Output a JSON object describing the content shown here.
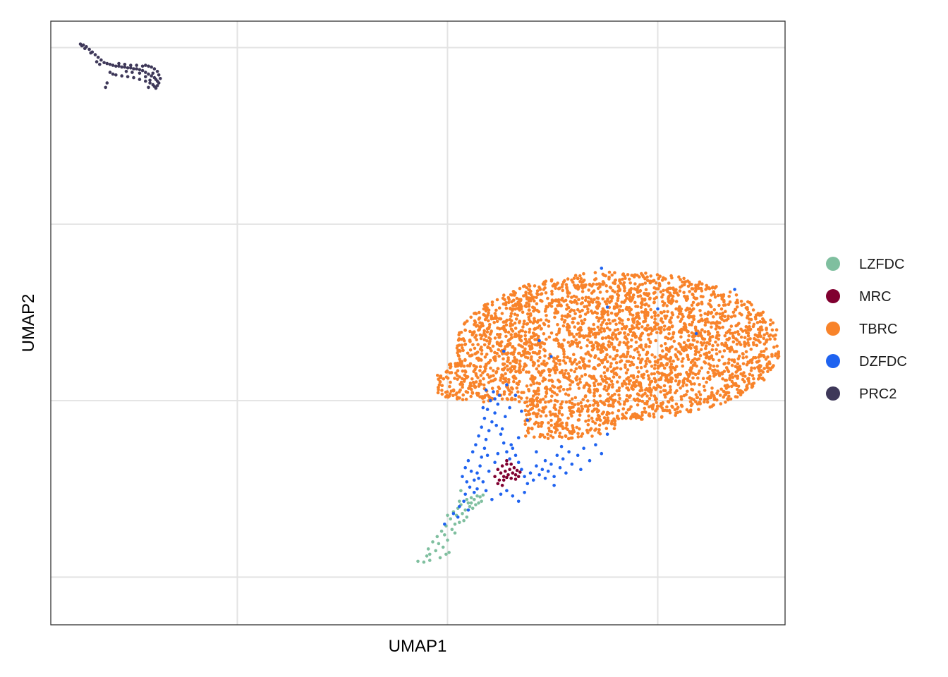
{
  "chart_data": {
    "type": "scatter",
    "title": "",
    "xlabel": "UMAP1",
    "ylabel": "UMAP2",
    "xlim": [
      -8.8,
      16
    ],
    "ylim": [
      -7.2,
      27
    ],
    "x_gridlines": [
      -2.5,
      4.6,
      11.7
    ],
    "y_gridlines": [
      -4.5,
      5.5,
      15.5,
      25.5
    ],
    "tick_labels_shown": false,
    "grid": true,
    "legend_position": "right",
    "series": [
      {
        "name": "LZFDC",
        "color": "#7FBF9F",
        "points": [
          [
            3.6,
            -3.6
          ],
          [
            3.8,
            -3.65
          ],
          [
            3.9,
            -3.3
          ],
          [
            3.95,
            -2.9
          ],
          [
            4.0,
            -3.2
          ],
          [
            4.1,
            -2.5
          ],
          [
            4.2,
            -3.0
          ],
          [
            4.25,
            -2.2
          ],
          [
            4.3,
            -2.6
          ],
          [
            4.35,
            -3.4
          ],
          [
            4.4,
            -1.9
          ],
          [
            4.45,
            -2.8
          ],
          [
            4.5,
            -2.1
          ],
          [
            4.55,
            -1.6
          ],
          [
            4.6,
            -2.4
          ],
          [
            4.65,
            -3.1
          ],
          [
            4.7,
            -1.2
          ],
          [
            4.75,
            -1.8
          ],
          [
            4.8,
            -0.8
          ],
          [
            4.85,
            -2.0
          ],
          [
            4.9,
            -1.0
          ],
          [
            4.95,
            -0.6
          ],
          [
            5.0,
            -1.4
          ],
          [
            5.05,
            -0.4
          ],
          [
            5.1,
            -0.9
          ],
          [
            5.15,
            -0.2
          ],
          [
            5.2,
            -0.7
          ],
          [
            5.25,
            -1.1
          ],
          [
            5.3,
            -0.3
          ],
          [
            5.35,
            -0.5
          ],
          [
            5.4,
            0.0
          ],
          [
            5.45,
            -0.6
          ],
          [
            5.5,
            -0.1
          ],
          [
            5.55,
            -0.4
          ],
          [
            5.6,
            0.1
          ],
          [
            5.65,
            -0.3
          ],
          [
            5.7,
            0.05
          ],
          [
            5.75,
            -0.2
          ],
          [
            5.8,
            0.15
          ],
          [
            4.0,
            -3.55
          ],
          [
            4.55,
            -3.2
          ],
          [
            4.6,
            -1.0
          ],
          [
            4.85,
            -1.5
          ],
          [
            5.0,
            -0.2
          ],
          [
            5.15,
            -1.3
          ],
          [
            5.25,
            -0.1
          ],
          [
            5.4,
            -0.3
          ],
          [
            5.05,
            0.4
          ]
        ]
      },
      {
        "name": "MRC",
        "color": "#800030",
        "points": [
          [
            6.2,
            1.2
          ],
          [
            6.3,
            1.6
          ],
          [
            6.35,
            1.0
          ],
          [
            6.4,
            1.4
          ],
          [
            6.45,
            1.8
          ],
          [
            6.5,
            1.2
          ],
          [
            6.55,
            1.5
          ],
          [
            6.6,
            1.9
          ],
          [
            6.65,
            1.3
          ],
          [
            6.7,
            1.6
          ],
          [
            6.75,
            1.1
          ],
          [
            6.8,
            1.4
          ],
          [
            6.85,
            1.7
          ],
          [
            6.9,
            1.3
          ],
          [
            6.95,
            1.55
          ],
          [
            7.0,
            1.2
          ],
          [
            7.05,
            1.45
          ],
          [
            6.5,
            1.0
          ],
          [
            6.6,
            2.1
          ],
          [
            6.75,
            1.9
          ],
          [
            6.45,
            0.7
          ],
          [
            6.3,
            0.8
          ],
          [
            6.9,
            1.05
          ],
          [
            6.6,
            1.15
          ]
        ]
      },
      {
        "name": "TBRC",
        "color": "#F8832A",
        "generated": true,
        "approx_count": 3000
      },
      {
        "name": "DZFDC",
        "color": "#1F63F0",
        "points": [
          [
            4.5,
            -1.5
          ],
          [
            4.8,
            -0.9
          ],
          [
            5.0,
            -0.5
          ],
          [
            5.2,
            0.2
          ],
          [
            5.35,
            0.6
          ],
          [
            5.5,
            1.0
          ],
          [
            5.6,
            1.4
          ],
          [
            5.7,
            1.8
          ],
          [
            5.75,
            2.3
          ],
          [
            5.85,
            2.8
          ],
          [
            5.9,
            3.3
          ],
          [
            6.0,
            3.8
          ],
          [
            6.1,
            4.3
          ],
          [
            6.2,
            4.8
          ],
          [
            6.3,
            5.3
          ],
          [
            6.35,
            5.8
          ],
          [
            5.1,
            1.2
          ],
          [
            5.2,
            1.7
          ],
          [
            5.3,
            2.1
          ],
          [
            5.45,
            2.6
          ],
          [
            5.55,
            3.0
          ],
          [
            5.65,
            3.5
          ],
          [
            5.75,
            4.0
          ],
          [
            5.85,
            4.5
          ],
          [
            5.95,
            5.0
          ],
          [
            6.05,
            5.5
          ],
          [
            6.15,
            6.0
          ],
          [
            6.25,
            4.1
          ],
          [
            6.4,
            3.6
          ],
          [
            6.5,
            3.1
          ],
          [
            6.6,
            2.6
          ],
          [
            6.7,
            2.2
          ],
          [
            6.8,
            2.8
          ],
          [
            6.9,
            2.4
          ],
          [
            7.0,
            2.0
          ],
          [
            7.1,
            1.6
          ],
          [
            7.2,
            1.2
          ],
          [
            7.3,
            0.8
          ],
          [
            7.4,
            1.4
          ],
          [
            7.5,
            1.0
          ],
          [
            7.6,
            1.8
          ],
          [
            7.7,
            1.3
          ],
          [
            7.8,
            1.6
          ],
          [
            7.9,
            2.1
          ],
          [
            8.0,
            1.5
          ],
          [
            8.1,
            1.9
          ],
          [
            8.2,
            1.2
          ],
          [
            8.3,
            2.4
          ],
          [
            8.4,
            1.7
          ],
          [
            8.5,
            2.2
          ],
          [
            8.6,
            1.4
          ],
          [
            8.7,
            2.6
          ],
          [
            8.8,
            1.9
          ],
          [
            9.0,
            2.4
          ],
          [
            9.2,
            2.8
          ],
          [
            9.4,
            2.1
          ],
          [
            6.6,
            0.4
          ],
          [
            6.8,
            0.1
          ],
          [
            7.0,
            -0.2
          ],
          [
            7.2,
            0.3
          ],
          [
            6.4,
            0.2
          ],
          [
            6.1,
            -0.1
          ],
          [
            5.9,
            0.4
          ],
          [
            5.8,
            0.9
          ],
          [
            6.0,
            1.5
          ],
          [
            6.2,
            2.0
          ],
          [
            6.3,
            2.5
          ],
          [
            5.4,
            1.5
          ],
          [
            5.25,
            0.9
          ],
          [
            5.6,
            0.5
          ],
          [
            5.95,
            2.4
          ],
          [
            6.45,
            3.9
          ],
          [
            6.55,
            4.6
          ],
          [
            6.7,
            5.1
          ],
          [
            6.2,
            5.6
          ],
          [
            5.9,
            6.1
          ],
          [
            5.8,
            5.1
          ],
          [
            6.6,
            6.4
          ],
          [
            6.9,
            5.8
          ],
          [
            7.1,
            4.9
          ],
          [
            7.3,
            4.4
          ],
          [
            7.0,
            3.4
          ],
          [
            6.75,
            3.0
          ],
          [
            5.65,
            1.1
          ],
          [
            5.5,
            0.3
          ],
          [
            5.3,
            -0.7
          ],
          [
            5.15,
            -0.2
          ],
          [
            4.95,
            -1.1
          ],
          [
            7.6,
            2.6
          ],
          [
            7.9,
            1.1
          ],
          [
            8.2,
            0.7
          ],
          [
            8.45,
            2.9
          ],
          [
            9.6,
            3.0
          ],
          [
            9.8,
            2.5
          ],
          [
            10.0,
            3.6
          ],
          [
            9.1,
            1.6
          ],
          [
            7.7,
            8.9
          ],
          [
            9.8,
            13.0
          ],
          [
            11.7,
            10.7
          ],
          [
            14.3,
            11.8
          ],
          [
            10.0,
            10.8
          ],
          [
            6.5,
            8.3
          ],
          [
            8.1,
            8.0
          ],
          [
            13.0,
            9.3
          ]
        ]
      },
      {
        "name": "PRC2",
        "color": "#3E3859",
        "points": [
          [
            -7.8,
            25.7
          ],
          [
            -7.7,
            25.65
          ],
          [
            -7.6,
            25.55
          ],
          [
            -7.5,
            25.4
          ],
          [
            -7.4,
            25.25
          ],
          [
            -7.3,
            25.1
          ],
          [
            -7.2,
            24.95
          ],
          [
            -7.1,
            24.8
          ],
          [
            -7.0,
            24.65
          ],
          [
            -6.9,
            24.6
          ],
          [
            -6.8,
            24.55
          ],
          [
            -6.7,
            24.5
          ],
          [
            -6.6,
            24.45
          ],
          [
            -6.5,
            24.45
          ],
          [
            -6.4,
            24.4
          ],
          [
            -6.3,
            24.4
          ],
          [
            -6.2,
            24.35
          ],
          [
            -6.1,
            24.35
          ],
          [
            -6.0,
            24.3
          ],
          [
            -5.9,
            24.3
          ],
          [
            -5.8,
            24.25
          ],
          [
            -5.7,
            24.2
          ],
          [
            -5.6,
            24.1
          ],
          [
            -5.5,
            24.0
          ],
          [
            -5.4,
            23.9
          ],
          [
            -5.3,
            23.8
          ],
          [
            -5.25,
            23.7
          ],
          [
            -5.2,
            23.6
          ],
          [
            -6.8,
            24.1
          ],
          [
            -6.6,
            23.95
          ],
          [
            -6.4,
            23.9
          ],
          [
            -6.2,
            23.85
          ],
          [
            -6.0,
            23.8
          ],
          [
            -5.8,
            23.7
          ],
          [
            -5.6,
            23.6
          ],
          [
            -5.45,
            23.5
          ],
          [
            -5.35,
            23.4
          ],
          [
            -5.3,
            23.3
          ],
          [
            -5.2,
            23.35
          ],
          [
            -5.15,
            23.5
          ],
          [
            -5.1,
            23.75
          ],
          [
            -5.15,
            23.95
          ],
          [
            -5.2,
            24.15
          ],
          [
            -5.3,
            24.3
          ],
          [
            -5.4,
            24.4
          ],
          [
            -5.5,
            24.45
          ],
          [
            -5.6,
            24.5
          ],
          [
            -5.7,
            24.45
          ],
          [
            -5.9,
            24.5
          ],
          [
            -6.1,
            24.5
          ],
          [
            -6.3,
            24.55
          ],
          [
            -6.5,
            24.6
          ],
          [
            -6.7,
            24.0
          ],
          [
            -6.9,
            23.5
          ],
          [
            -6.95,
            23.25
          ],
          [
            -7.15,
            24.55
          ],
          [
            -7.25,
            24.7
          ],
          [
            -7.45,
            25.2
          ],
          [
            -7.65,
            25.45
          ],
          [
            -7.75,
            25.6
          ],
          [
            -5.5,
            23.25
          ],
          [
            -5.25,
            23.2
          ],
          [
            -5.6,
            23.85
          ],
          [
            -5.8,
            24.05
          ],
          [
            -6.05,
            24.1
          ],
          [
            -6.25,
            24.15
          ],
          [
            -5.35,
            24.05
          ],
          [
            -5.45,
            23.65
          ]
        ]
      }
    ]
  }
}
